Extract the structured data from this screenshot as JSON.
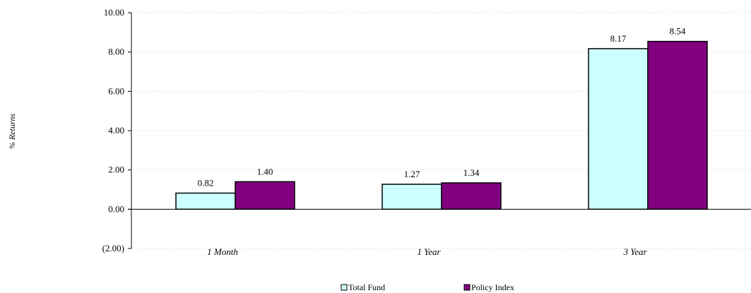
{
  "chart_data": {
    "type": "bar",
    "categories": [
      "1 Month",
      "1 Year",
      "3 Year"
    ],
    "series": [
      {
        "name": "Total Fund",
        "values": [
          0.82,
          1.27,
          8.17
        ],
        "color": "#ccffff"
      },
      {
        "name": "Policy Index",
        "values": [
          1.4,
          1.34,
          8.54
        ],
        "color": "#800080"
      }
    ],
    "ylabel": "% Returns",
    "ylim": [
      -2,
      10
    ],
    "yticks": [
      -2,
      0,
      2,
      4,
      6,
      8,
      10
    ],
    "ytick_labels": [
      "(2.00)",
      "0.00",
      "2.00",
      "4.00",
      "6.00",
      "8.00",
      "10.00"
    ],
    "negative_tick_color": "#ff0000",
    "data_labels": [
      [
        "0.82",
        "1.27",
        "8.17"
      ],
      [
        "1.40",
        "1.34",
        "8.54"
      ]
    ],
    "grid": true,
    "legend_position": "bottom"
  }
}
